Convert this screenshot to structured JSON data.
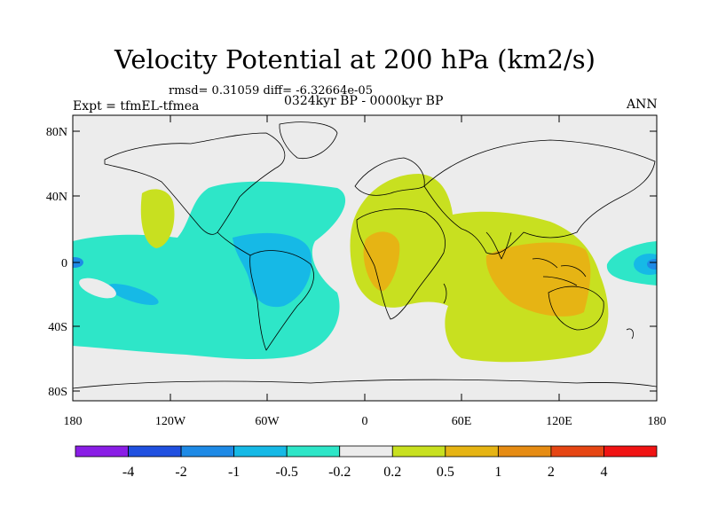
{
  "header": {
    "title": "Velocity Potential at 200 hPa (km2/s)",
    "stats": "rmsd= 0.31059 diff= -6.32664e-05",
    "experiment": "Expt = tfmEL-tfmea",
    "period": "0324kyr BP - 0000kyr BP",
    "season": "ANN"
  },
  "map": {
    "lat_ticks": [
      "80N",
      "40N",
      "0",
      "40S",
      "80S"
    ],
    "lon_ticks": [
      "180",
      "120W",
      "60W",
      "0",
      "60E",
      "120E",
      "180"
    ]
  },
  "colorbar": {
    "labels": [
      "-4",
      "-2",
      "-1",
      "-0.5",
      "-0.2",
      "0.2",
      "0.5",
      "1",
      "2",
      "4"
    ],
    "colors": [
      "#8a1ee6",
      "#2050e0",
      "#1e8ae6",
      "#16b9e6",
      "#2ee6c8",
      "#ececec",
      "#c8e020",
      "#e6b414",
      "#e68c14",
      "#e64614",
      "#f01414"
    ]
  },
  "colors": {
    "land_bg": "#ececec",
    "neg_light": "#2ee6c8",
    "neg_mid": "#16b9e6",
    "neg_strong": "#1e8ae6",
    "pos_light": "#c8e020",
    "pos_mid": "#e6b414"
  }
}
